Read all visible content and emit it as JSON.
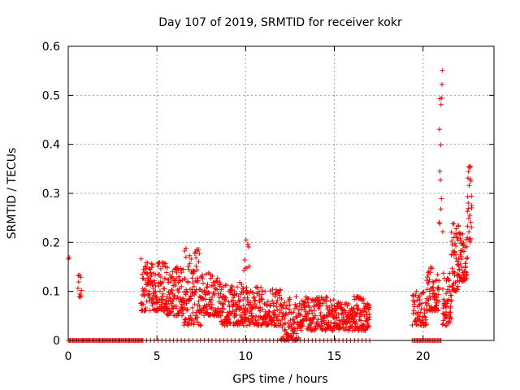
{
  "chart_data": {
    "type": "scatter",
    "title": "Day 107 of 2019, SRMTID for receiver kokr",
    "xlabel": "GPS time / hours",
    "ylabel": "SRMTID / TECUs",
    "xlim": [
      0,
      24
    ],
    "ylim": [
      0,
      0.6
    ],
    "x_ticks": [
      0,
      5,
      10,
      15,
      20
    ],
    "y_ticks": [
      0,
      0.1,
      0.2,
      0.3,
      0.4,
      0.5,
      0.6
    ],
    "x_tick_labels": [
      "0",
      "5",
      "10",
      "15",
      "20"
    ],
    "y_tick_labels": [
      "0",
      "0.1",
      "0.2",
      "0.3",
      "0.4",
      "0.5",
      "0.6"
    ],
    "grid": true,
    "marker": "+",
    "marker_color": "#ff0000",
    "series": [
      {
        "name": "SRMTID",
        "segments": [
          {
            "x_start": 0.0,
            "x_end": 0.05,
            "y_min": 0.165,
            "y_max": 0.17,
            "count": 2
          },
          {
            "x_start": 0.0,
            "x_end": 4.2,
            "y_min": 0.0,
            "y_max": 0.0,
            "count": 70
          },
          {
            "x_start": 0.55,
            "x_end": 0.75,
            "y_min": 0.07,
            "y_max": 0.14,
            "count": 10
          },
          {
            "x_start": 4.1,
            "x_end": 4.4,
            "y_min": 0.06,
            "y_max": 0.17,
            "count": 30
          },
          {
            "x_start": 4.4,
            "x_end": 5.5,
            "y_min": 0.06,
            "y_max": 0.16,
            "count": 120
          },
          {
            "x_start": 5.5,
            "x_end": 6.5,
            "y_min": 0.05,
            "y_max": 0.15,
            "count": 110
          },
          {
            "x_start": 6.5,
            "x_end": 7.5,
            "y_min": 0.03,
            "y_max": 0.19,
            "count": 110
          },
          {
            "x_start": 7.5,
            "x_end": 8.5,
            "y_min": 0.05,
            "y_max": 0.14,
            "count": 90
          },
          {
            "x_start": 8.5,
            "x_end": 10.0,
            "y_min": 0.03,
            "y_max": 0.12,
            "count": 150
          },
          {
            "x_start": 9.9,
            "x_end": 10.2,
            "y_min": 0.12,
            "y_max": 0.22,
            "count": 8
          },
          {
            "x_start": 10.0,
            "x_end": 12.0,
            "y_min": 0.03,
            "y_max": 0.11,
            "count": 180
          },
          {
            "x_start": 12.0,
            "x_end": 13.0,
            "y_min": 0.0,
            "y_max": 0.09,
            "count": 90
          },
          {
            "x_start": 13.0,
            "x_end": 15.0,
            "y_min": 0.02,
            "y_max": 0.09,
            "count": 180
          },
          {
            "x_start": 15.0,
            "x_end": 16.0,
            "y_min": 0.02,
            "y_max": 0.08,
            "count": 90
          },
          {
            "x_start": 16.0,
            "x_end": 17.0,
            "y_min": 0.02,
            "y_max": 0.09,
            "count": 100
          },
          {
            "x_start": 4.2,
            "x_end": 17.0,
            "y_min": 0.0,
            "y_max": 0.0,
            "count": 60
          },
          {
            "x_start": 19.4,
            "x_end": 20.2,
            "y_min": 0.03,
            "y_max": 0.1,
            "count": 60
          },
          {
            "x_start": 20.2,
            "x_end": 20.9,
            "y_min": 0.06,
            "y_max": 0.15,
            "count": 70
          },
          {
            "x_start": 20.9,
            "x_end": 21.1,
            "y_min": 0.2,
            "y_max": 0.56,
            "count": 14
          },
          {
            "x_start": 21.1,
            "x_end": 21.6,
            "y_min": 0.03,
            "y_max": 0.14,
            "count": 60
          },
          {
            "x_start": 21.6,
            "x_end": 22.0,
            "y_min": 0.1,
            "y_max": 0.24,
            "count": 50
          },
          {
            "x_start": 22.0,
            "x_end": 22.5,
            "y_min": 0.12,
            "y_max": 0.22,
            "count": 60
          },
          {
            "x_start": 22.5,
            "x_end": 22.75,
            "y_min": 0.2,
            "y_max": 0.36,
            "count": 25
          },
          {
            "x_start": 19.4,
            "x_end": 21.0,
            "y_min": 0.0,
            "y_max": 0.0,
            "count": 25
          }
        ]
      }
    ]
  }
}
